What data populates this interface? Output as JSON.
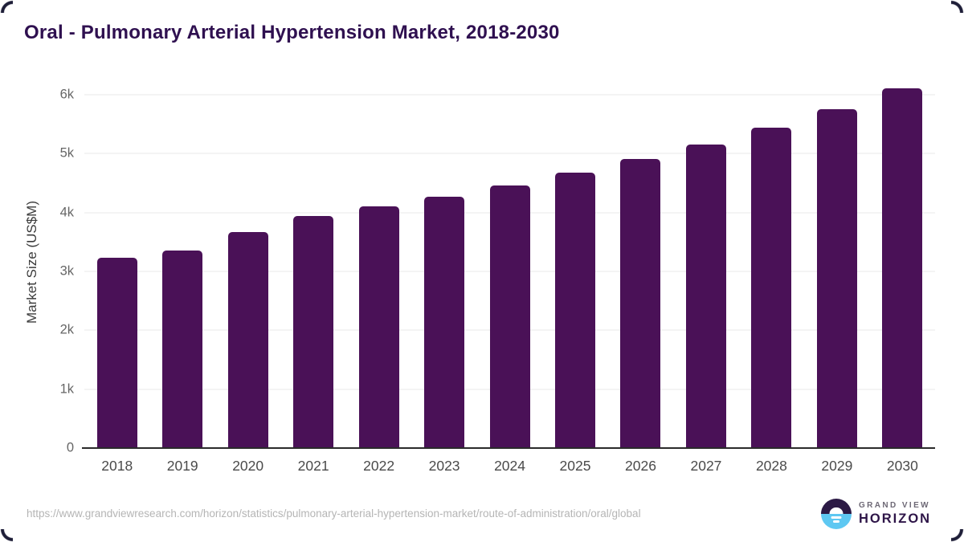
{
  "chart_data": {
    "type": "bar",
    "title": "Oral - Pulmonary Arterial Hypertension Market, 2018-2030",
    "categories": [
      "2018",
      "2019",
      "2020",
      "2021",
      "2022",
      "2023",
      "2024",
      "2025",
      "2026",
      "2027",
      "2028",
      "2029",
      "2030"
    ],
    "values": [
      3230,
      3350,
      3660,
      3940,
      4100,
      4260,
      4450,
      4670,
      4900,
      5150,
      5440,
      5750,
      6100
    ],
    "xlabel": "",
    "ylabel": "Market Size (US$M)",
    "ylim": [
      0,
      6310
    ],
    "yticks": [
      {
        "value": 0,
        "label": "0"
      },
      {
        "value": 1000,
        "label": "1k"
      },
      {
        "value": 2000,
        "label": "2k"
      },
      {
        "value": 3000,
        "label": "3k"
      },
      {
        "value": 4000,
        "label": "4k"
      },
      {
        "value": 5000,
        "label": "5k"
      },
      {
        "value": 6000,
        "label": "6k"
      }
    ],
    "grid": true,
    "legend": false,
    "bar_color": "#4a1157"
  },
  "footer": {
    "source_url": "https://www.grandviewresearch.com/horizon/statistics/pulmonary-arterial-hypertension-market/route-of-administration/oral/global",
    "logo": {
      "brand_top": "GRAND VIEW",
      "brand_bottom": "HORIZON"
    }
  },
  "colors": {
    "bar": "#4a1157",
    "title": "#2f1050",
    "axis_text": "#666666",
    "x_label": "#4a4a4a",
    "gridline": "#e8e8ea",
    "baseline": "#2b2b2b",
    "url_text": "#b5b5b5",
    "logo_dark": "#2c1a45",
    "logo_blue": "#5ec8f2",
    "logo_top_text": "#6d6875",
    "logo_bottom_text": "#2e1548"
  }
}
